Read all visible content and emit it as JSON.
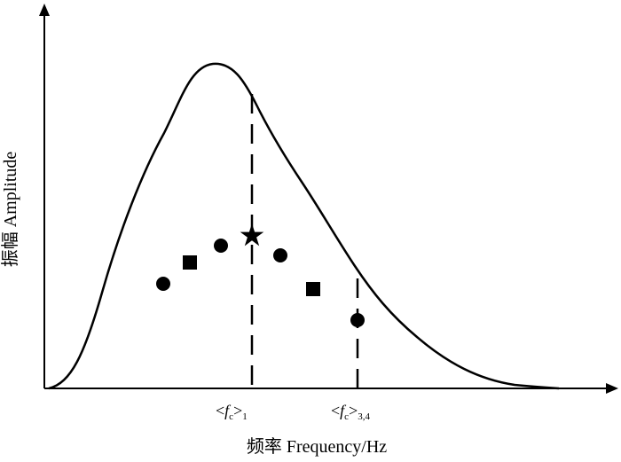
{
  "y_axis_label": "振幅 Amplitude",
  "x_axis_label": "频率 Frequency/Hz",
  "marker1": {
    "open": "<",
    "symbol": "f",
    "subscript_c": "c",
    "close": ">",
    "subscript": "1"
  },
  "marker2": {
    "open": "<",
    "symbol": "f",
    "subscript_c": "c",
    "close": ">",
    "subscript": "3,4"
  },
  "point_shapes": [
    "circle",
    "square",
    "circle",
    "star",
    "circle",
    "square",
    "circle"
  ],
  "colors": {
    "ink": "#000000",
    "background": "#ffffff"
  }
}
